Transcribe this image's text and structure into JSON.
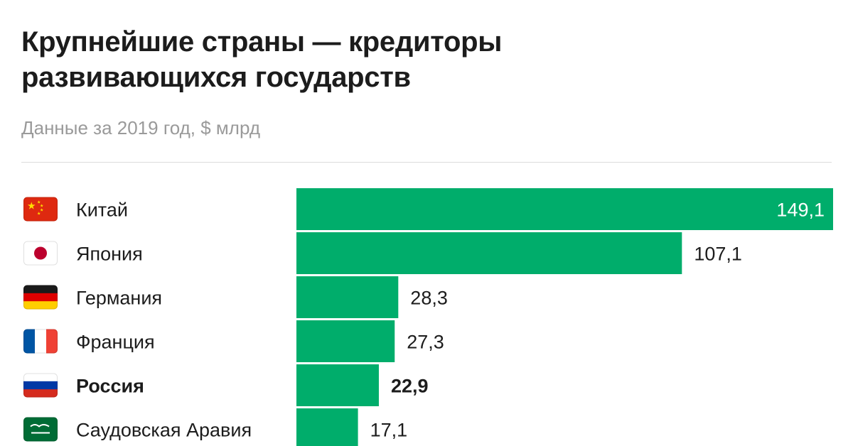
{
  "header": {
    "title_line1": "Крупнейшие страны — кредиторы",
    "title_line2": "развивающихся государств",
    "subtitle": "Данные за 2019 год, $ млрд"
  },
  "colors": {
    "bar": "#00ad6b",
    "text": "#1c1c1c",
    "subtitle": "#9a9a9a"
  },
  "chart_data": {
    "type": "bar",
    "orientation": "horizontal",
    "title": "Крупнейшие страны — кредиторы развивающихся государств",
    "subtitle": "Данные за 2019 год, $ млрд",
    "categories": [
      "Китай",
      "Япония",
      "Германия",
      "Франция",
      "Россия",
      "Саудовская Аравия"
    ],
    "values": [
      149.1,
      107.1,
      28.3,
      27.3,
      22.9,
      17.1
    ],
    "value_labels": [
      "149,1",
      "107,1",
      "28,3",
      "27,3",
      "22,9",
      "17,1"
    ],
    "flag_icons": [
      "china-flag-icon",
      "japan-flag-icon",
      "germany-flag-icon",
      "france-flag-icon",
      "russia-flag-icon",
      "saudi-arabia-flag-icon"
    ],
    "highlight": "Россия",
    "xlim": [
      0,
      149.1
    ],
    "grid": false,
    "legend": "none"
  }
}
